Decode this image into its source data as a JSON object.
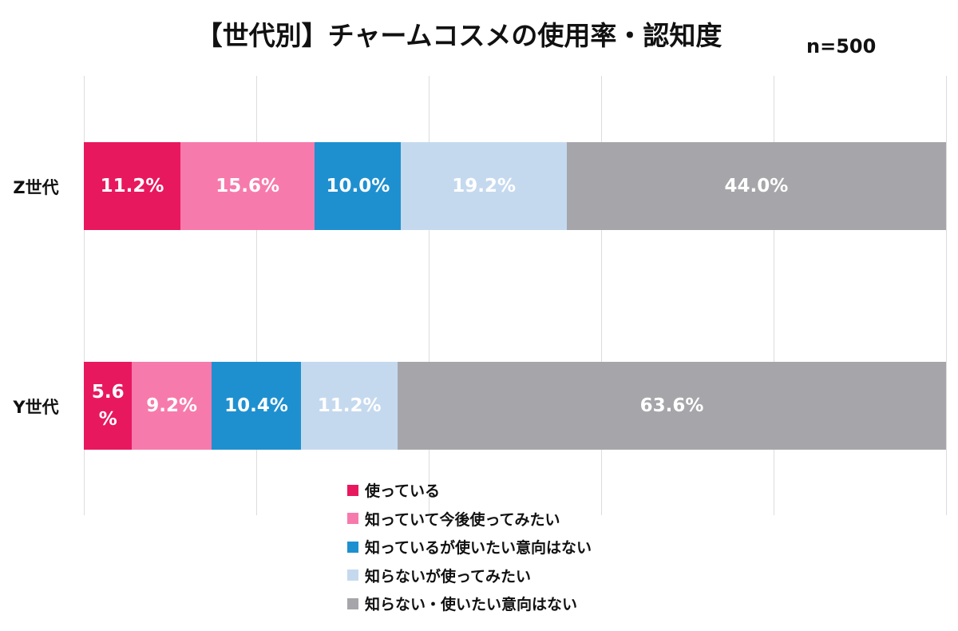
{
  "chart_data": {
    "type": "stacked-bar-horizontal",
    "title": "【世代別】チャームコスメの使用率・認知度",
    "subtitle": "n=500",
    "categories": [
      "Z世代",
      "Y世代"
    ],
    "series": [
      {
        "name": "使っている",
        "color": "#e8185e",
        "values": [
          11.2,
          5.6
        ],
        "value_labels": [
          "11.2%",
          "5.6%"
        ]
      },
      {
        "name": "知っていて今後使ってみたい",
        "color": "#f77aac",
        "values": [
          15.6,
          9.2
        ],
        "value_labels": [
          "15.6%",
          "9.2%"
        ]
      },
      {
        "name": "知っているが使いたい意向はない",
        "color": "#1e90d0",
        "values": [
          10.0,
          10.4
        ],
        "value_labels": [
          "10.0%",
          "10.4%"
        ]
      },
      {
        "name": "知らないが使ってみたい",
        "color": "#c5d9ee",
        "values": [
          19.2,
          11.2
        ],
        "value_labels": [
          "19.2%",
          "11.2%"
        ]
      },
      {
        "name": "知らない・使いたい意向はない",
        "color": "#a6a6aa",
        "values": [
          44.0,
          63.6
        ],
        "value_labels": [
          "44.0%",
          "63.6%"
        ]
      }
    ],
    "xlim": [
      0,
      100
    ],
    "xticks": [
      0,
      20,
      40,
      60,
      80,
      100
    ],
    "grid": true
  }
}
